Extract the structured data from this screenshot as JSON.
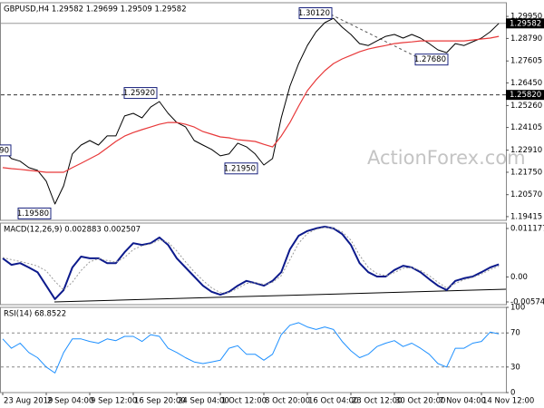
{
  "watermark": "ActionForex.com",
  "chart_data": [
    {
      "type": "line",
      "title": "GBPUSD,H4 1.29582 1.29699 1.29509 1.29582",
      "ylim": [
        1.1922,
        1.3067
      ],
      "yticks": [
        {
          "value": 1.2995,
          "label": "1.29950"
        },
        {
          "value": 1.2879,
          "label": "1.28790"
        },
        1.27605,
        {
          "value": 1.2645,
          "label": "1.26450"
        },
        {
          "value": 1.2526,
          "label": "1.25260"
        },
        1.24105,
        {
          "value": 1.2291,
          "label": "1.22910"
        },
        {
          "value": 1.2175,
          "label": "1.21750"
        },
        {
          "value": 1.2057,
          "label": "1.20570"
        },
        1.19415
      ],
      "grid": false,
      "hlines": [
        {
          "value": 1.29582,
          "label": "1.29582",
          "dashed": false,
          "color": "#9a9a9a"
        },
        {
          "value": 1.2582,
          "label": "1.25820",
          "dashed": true,
          "color": "#333333"
        }
      ],
      "annotations": [
        {
          "value": 1.3012,
          "label": "1.30120"
        },
        {
          "value": 1.2768,
          "label": "1.27680"
        },
        {
          "value": 1.2592,
          "label": "1.25920"
        },
        {
          "value": 1.2195,
          "label": "1.21950"
        },
        {
          "value": 1.1958,
          "label": "1.19580"
        },
        {
          "value": 1.229,
          "label": "90"
        }
      ],
      "series": [
        {
          "color": "#000000",
          "values": [
            1.2295,
            1.2247,
            1.2233,
            1.2199,
            1.2185,
            1.2128,
            1.2008,
            1.2104,
            1.2271,
            1.2318,
            1.2342,
            1.2318,
            1.2366,
            1.2366,
            1.2471,
            1.2485,
            1.2461,
            1.2518,
            1.2547,
            1.2485,
            1.2437,
            1.2414,
            1.2342,
            1.2318,
            1.2295,
            1.2261,
            1.2271,
            1.2328,
            1.2309,
            1.2271,
            1.2213,
            1.2247,
            1.2461,
            1.2628,
            1.2747,
            1.2842,
            1.2914,
            1.2962,
            1.2985,
            1.2938,
            1.29,
            1.2852,
            1.2842,
            1.2866,
            1.289,
            1.29,
            1.2881,
            1.29,
            1.2881,
            1.2852,
            1.2819,
            1.2804,
            1.2852,
            1.2842,
            1.2862,
            1.2881,
            1.2914,
            1.2958
          ]
        },
        {
          "color": "#e8393a",
          "values": [
            1.2199,
            1.2194,
            1.219,
            1.2185,
            1.218,
            1.2175,
            1.2175,
            1.2175,
            1.2199,
            1.2222,
            1.2246,
            1.227,
            1.2303,
            1.2337,
            1.2365,
            1.2384,
            1.2399,
            1.2413,
            1.2427,
            1.2437,
            1.2437,
            1.2427,
            1.2413,
            1.2389,
            1.2375,
            1.2361,
            1.2356,
            1.2346,
            1.2342,
            1.2337,
            1.2322,
            1.2308,
            1.2365,
            1.2437,
            1.2523,
            1.2604,
            1.2661,
            1.2709,
            1.2747,
            1.2771,
            1.279,
            1.2809,
            1.2823,
            1.2833,
            1.2842,
            1.2852,
            1.2857,
            1.2861,
            1.2866,
            1.2866,
            1.2866,
            1.2866,
            1.2866,
            1.2866,
            1.2871,
            1.2876,
            1.2881,
            1.289
          ]
        }
      ]
    },
    {
      "type": "line",
      "title": "MACD(12,26,9) 0.002883 0.002507",
      "ylim": [
        -0.00637,
        0.01243
      ],
      "yticks": [
        0.011177,
        {
          "value": 0,
          "label": "0.00"
        },
        -0.005746
      ],
      "grid": false,
      "series": [
        {
          "color": "#0c1a8c",
          "dashed": false,
          "values": [
            0.0043,
            0.0028,
            0.0032,
            0.0022,
            0.0011,
            -0.002,
            -0.0051,
            -0.003,
            0.0022,
            0.0047,
            0.0043,
            0.0043,
            0.0032,
            0.0032,
            0.0057,
            0.0078,
            0.0074,
            0.0078,
            0.0091,
            0.0074,
            0.0043,
            0.0022,
            0.0001,
            -0.002,
            -0.0034,
            -0.0041,
            -0.0034,
            -0.002,
            -0.0009,
            -0.0014,
            -0.002,
            -0.0009,
            0.0011,
            0.0064,
            0.0095,
            0.0106,
            0.0112,
            0.0116,
            0.0112,
            0.0099,
            0.0074,
            0.0032,
            0.0011,
            0.0001,
            0.0001,
            0.0016,
            0.0026,
            0.0022,
            0.0011,
            -0.0005,
            -0.002,
            -0.003,
            -0.0009,
            -0.0003,
            0.0001,
            0.0011,
            0.0022,
            0.0029
          ]
        },
        {
          "color": "#9a9a9a",
          "dashed": true,
          "values": [
            0.0045,
            0.004,
            0.0036,
            0.0031,
            0.0025,
            0.0014,
            -0.001,
            -0.003,
            -0.0012,
            0.0015,
            0.0035,
            0.0042,
            0.0038,
            0.0034,
            0.0045,
            0.0063,
            0.0072,
            0.0076,
            0.0085,
            0.008,
            0.006,
            0.0035,
            0.0012,
            -0.0008,
            -0.0025,
            -0.0036,
            -0.0036,
            -0.0026,
            -0.0015,
            -0.0013,
            -0.0017,
            -0.0012,
            0.0003,
            0.004,
            0.0078,
            0.01,
            0.011,
            0.0114,
            0.0113,
            0.0104,
            0.0085,
            0.005,
            0.0022,
            0.0008,
            0.0003,
            0.001,
            0.002,
            0.0022,
            0.0015,
            0.0003,
            -0.0012,
            -0.0025,
            -0.0015,
            -0.0006,
            -0.0001,
            0.0007,
            0.0017,
            0.0025
          ]
        }
      ]
    },
    {
      "type": "line",
      "title": "RSI(14) 68.8522",
      "ylim": [
        0,
        100
      ],
      "yticks": [
        100,
        70,
        30,
        0
      ],
      "grid": true,
      "categories": [
        "23 Aug 2019",
        null,
        null,
        null,
        null,
        "2 Sep 04:00",
        null,
        null,
        null,
        null,
        "9 Sep 12:00",
        null,
        null,
        null,
        null,
        "16 Sep 20:00",
        null,
        null,
        null,
        null,
        "24 Sep 04:00",
        null,
        null,
        null,
        null,
        "1 Oct 12:00",
        null,
        null,
        null,
        null,
        "8 Oct 20:00",
        null,
        null,
        null,
        null,
        "16 Oct 04:00",
        null,
        null,
        null,
        null,
        "23 Oct 12:00",
        null,
        null,
        null,
        null,
        "30 Oct 20:00",
        null,
        null,
        null,
        null,
        "7 Nov 04:00",
        null,
        null,
        null,
        null,
        "14 Nov 12:00",
        null,
        null
      ],
      "series": [
        {
          "color": "#1e90ff",
          "values": [
            63,
            52,
            58,
            47,
            41,
            30,
            23,
            47,
            63,
            63,
            60,
            58,
            63,
            61,
            66,
            66,
            60,
            68,
            66,
            52,
            47,
            41,
            36,
            34,
            36,
            38,
            52,
            55,
            45,
            45,
            38,
            45,
            68,
            79,
            82,
            77,
            74,
            77,
            74,
            60,
            49,
            41,
            45,
            54,
            58,
            61,
            54,
            58,
            52,
            45,
            34,
            30,
            52,
            52,
            58,
            60,
            71,
            68.9
          ]
        }
      ]
    }
  ]
}
